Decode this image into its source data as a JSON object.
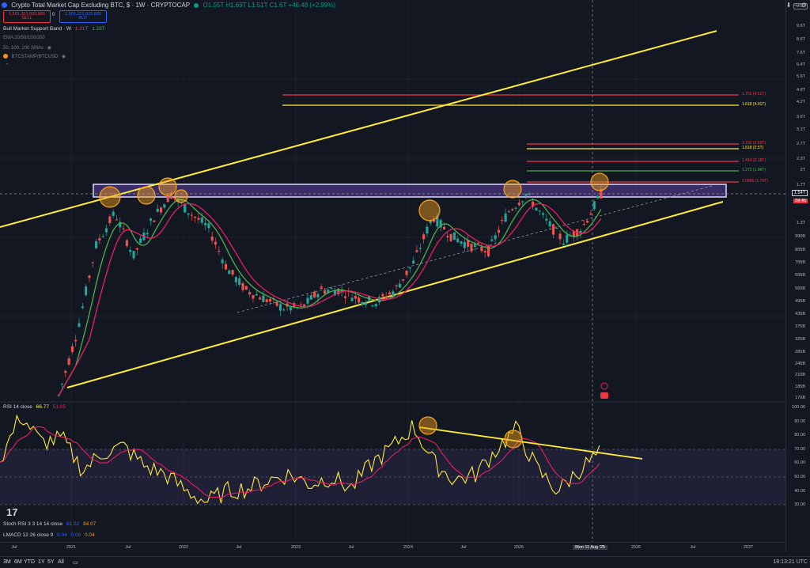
{
  "header": {
    "symbol_title": "Crypto Total Market Cap Excluding BTC, $ · 1W · CRYPTOCAP",
    "ohlc": "O1.55T H1.69T L1.51T C1.6T +46.48 (+2.99%)",
    "sell_price": "1,501,321,933,885",
    "sell_label": "SELL",
    "spread": "0",
    "buy_price": "1,501,321,933,885",
    "buy_label": "BUY",
    "currency": "USD"
  },
  "indicators": {
    "bmsb": {
      "name": "Bull Market Support Band · W",
      "v1": "1.21T",
      "v2": "1.28T"
    },
    "ema": {
      "name": "EMA 20/50/100/200"
    },
    "sma": {
      "name": "50, 100, 200 SMAs"
    },
    "btc": {
      "name": "BTCSTAMP/BTCUSD"
    }
  },
  "rsi_legend": {
    "name": "RSI 14 close",
    "v1": "66.77",
    "v2": "51.05"
  },
  "stoch_legend": {
    "name": "Stoch RSI 3 3 14 14 close",
    "v1": "81.52",
    "v2": "84.07"
  },
  "macd_legend": {
    "name": "LMACD 12 26 close 9",
    "v1": "0.04",
    "v2": "0.08",
    "v3": "0.04"
  },
  "price_axis": [
    "9.6T",
    "8.6T",
    "7.6T",
    "6.4T",
    "5.6T",
    "4.8T",
    "4.2T",
    "3.6T",
    "3.1T",
    "2.7T",
    "2.3T",
    "2T",
    "1.7T",
    "1.3T",
    "990B",
    "855B",
    "755B",
    "655B",
    "565B",
    "495B",
    "435B",
    "375B",
    "325B",
    "285B",
    "245B",
    "210B",
    "185B",
    "170B"
  ],
  "price_labels": {
    "current": "1.54T",
    "countdown": "2d 4h"
  },
  "rsi_axis": [
    "100.00",
    "90.00",
    "80.00",
    "70.00",
    "60.00",
    "50.00",
    "40.00",
    "30.00"
  ],
  "time_axis": [
    "Jul",
    "2021",
    "Jul",
    "2022",
    "Jul",
    "2023",
    "Jul",
    "2024",
    "Jul",
    "2025",
    "Mon 11 Aug '25",
    "2026",
    "Jul",
    "2027"
  ],
  "fib_levels": [
    {
      "label": "1.702 (4.51T)",
      "color": "#f23645"
    },
    {
      "label": "1.618 (4.01T)",
      "color": "#ffeb3b"
    },
    {
      "label": "1.702 (2.69T)",
      "color": "#f23645"
    },
    {
      "label": "1.618 (2.5T)",
      "color": "#ffeb3b"
    },
    {
      "label": "1.414 (2.18T)",
      "color": "#f23645"
    },
    {
      "label": "1.272 (1.98T)",
      "color": "#4caf50"
    },
    {
      "label": "1.0866 (1.74T)",
      "color": "#f23645"
    }
  ],
  "toolbar": {
    "ranges": [
      "3M",
      "6M",
      "YTD",
      "1Y",
      "5Y",
      "All"
    ],
    "time": "18:13:21 UTC"
  },
  "chart_data": [
    {
      "type": "line",
      "title": "Crypto Total Market Cap Excluding BTC, $ · 1W · CRYPTOCAP",
      "x": [
        "2020-11",
        "2021-01",
        "2021-03",
        "2021-05",
        "2021-07",
        "2021-09",
        "2021-11",
        "2022-01",
        "2022-03",
        "2022-05",
        "2022-07",
        "2022-09",
        "2022-11",
        "2023-01",
        "2023-03",
        "2023-05",
        "2023-07",
        "2023-09",
        "2023-11",
        "2024-01",
        "2024-03",
        "2024-05",
        "2024-07",
        "2024-09",
        "2024-11",
        "2024-12",
        "2025-02",
        "2025-04",
        "2025-06",
        "2025-08"
      ],
      "series": [
        {
          "values": [
            0.17,
            0.35,
            0.9,
            1.3,
            0.8,
            1.2,
            1.6,
            1.3,
            1.1,
            0.7,
            0.55,
            0.5,
            0.45,
            0.45,
            0.55,
            0.55,
            0.5,
            0.48,
            0.55,
            0.75,
            1.25,
            1.0,
            0.9,
            0.85,
            1.3,
            1.6,
            1.2,
            0.95,
            1.1,
            1.6
          ]
        }
      ],
      "ylabel": "USD",
      "log_scale": true
    },
    {
      "type": "line",
      "title": "RSI 14 close",
      "x": [
        "2020-11",
        "2021-01",
        "2021-03",
        "2021-05",
        "2021-07",
        "2021-09",
        "2021-11",
        "2022-01",
        "2022-03",
        "2022-05",
        "2022-07",
        "2022-09",
        "2022-11",
        "2023-01",
        "2023-03",
        "2023-05",
        "2023-07",
        "2023-09",
        "2023-11",
        "2024-01",
        "2024-03",
        "2024-05",
        "2024-07",
        "2024-09",
        "2024-11",
        "2024-12",
        "2025-02",
        "2025-04",
        "2025-06",
        "2025-08"
      ],
      "series": [
        {
          "values": [
            62,
            95,
            75,
            78,
            55,
            68,
            72,
            58,
            52,
            40,
            32,
            40,
            42,
            48,
            52,
            45,
            50,
            42,
            60,
            72,
            87,
            60,
            48,
            52,
            70,
            85,
            55,
            40,
            55,
            67
          ]
        }
      ],
      "ylim": [
        30,
        100
      ]
    }
  ]
}
